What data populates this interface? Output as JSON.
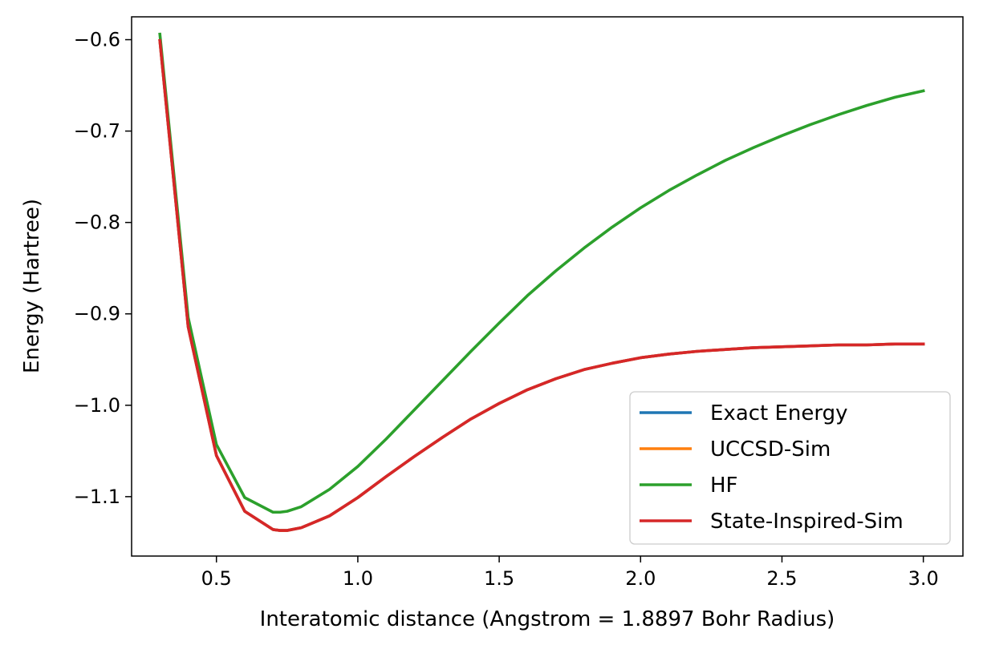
{
  "chart_data": {
    "type": "line",
    "title": "",
    "xlabel": "Interatomic distance (Angstrom = 1.8897 Bohr Radius)",
    "ylabel": "Energy (Hartree)",
    "xlim": [
      0.2,
      3.14
    ],
    "ylim": [
      -1.165,
      -0.575
    ],
    "xticks": [
      0.5,
      1.0,
      1.5,
      2.0,
      2.5,
      3.0
    ],
    "xtick_labels": [
      "0.5",
      "1.0",
      "1.5",
      "2.0",
      "2.5",
      "3.0"
    ],
    "yticks": [
      -0.6,
      -0.7,
      -0.8,
      -0.9,
      -1.0,
      -1.1
    ],
    "ytick_labels": [
      "−0.6",
      "−0.7",
      "−0.8",
      "−0.9",
      "−1.0",
      "−1.1"
    ],
    "grid": false,
    "legend_position": "lower-right",
    "x": [
      0.3,
      0.4,
      0.5,
      0.6,
      0.7,
      0.725,
      0.75,
      0.8,
      0.9,
      1.0,
      1.1,
      1.2,
      1.3,
      1.4,
      1.5,
      1.6,
      1.7,
      1.8,
      1.9,
      2.0,
      2.1,
      2.2,
      2.3,
      2.4,
      2.5,
      2.6,
      2.7,
      2.8,
      2.9,
      3.0
    ],
    "series": [
      {
        "name": "Exact Energy",
        "color": "#1f77b4",
        "values": [
          -0.601,
          -0.914,
          -1.055,
          -1.116,
          -1.136,
          -1.137,
          -1.137,
          -1.134,
          -1.121,
          -1.101,
          -1.078,
          -1.056,
          -1.035,
          -1.015,
          -0.998,
          -0.983,
          -0.971,
          -0.961,
          -0.954,
          -0.948,
          -0.944,
          -0.941,
          -0.939,
          -0.937,
          -0.936,
          -0.935,
          -0.934,
          -0.934,
          -0.933,
          -0.933
        ]
      },
      {
        "name": "UCCSD-Sim",
        "color": "#ff7f0e",
        "values": [
          -0.601,
          -0.914,
          -1.055,
          -1.116,
          -1.136,
          -1.137,
          -1.137,
          -1.134,
          -1.121,
          -1.101,
          -1.078,
          -1.056,
          -1.035,
          -1.015,
          -0.998,
          -0.983,
          -0.971,
          -0.961,
          -0.954,
          -0.948,
          -0.944,
          -0.941,
          -0.939,
          -0.937,
          -0.936,
          -0.935,
          -0.934,
          -0.934,
          -0.933,
          -0.933
        ]
      },
      {
        "name": "HF",
        "color": "#2ca02c",
        "values": [
          -0.594,
          -0.904,
          -1.043,
          -1.101,
          -1.117,
          -1.117,
          -1.116,
          -1.111,
          -1.092,
          -1.067,
          -1.037,
          -1.005,
          -0.973,
          -0.941,
          -0.91,
          -0.88,
          -0.853,
          -0.828,
          -0.805,
          -0.784,
          -0.765,
          -0.748,
          -0.732,
          -0.718,
          -0.705,
          -0.693,
          -0.682,
          -0.672,
          -0.663,
          -0.656
        ]
      },
      {
        "name": "State-Inspired-Sim",
        "color": "#d62728",
        "values": [
          -0.601,
          -0.914,
          -1.055,
          -1.116,
          -1.136,
          -1.137,
          -1.137,
          -1.134,
          -1.121,
          -1.101,
          -1.078,
          -1.056,
          -1.035,
          -1.015,
          -0.998,
          -0.983,
          -0.971,
          -0.961,
          -0.954,
          -0.948,
          -0.944,
          -0.941,
          -0.939,
          -0.937,
          -0.936,
          -0.935,
          -0.934,
          -0.934,
          -0.933,
          -0.933
        ]
      }
    ]
  }
}
